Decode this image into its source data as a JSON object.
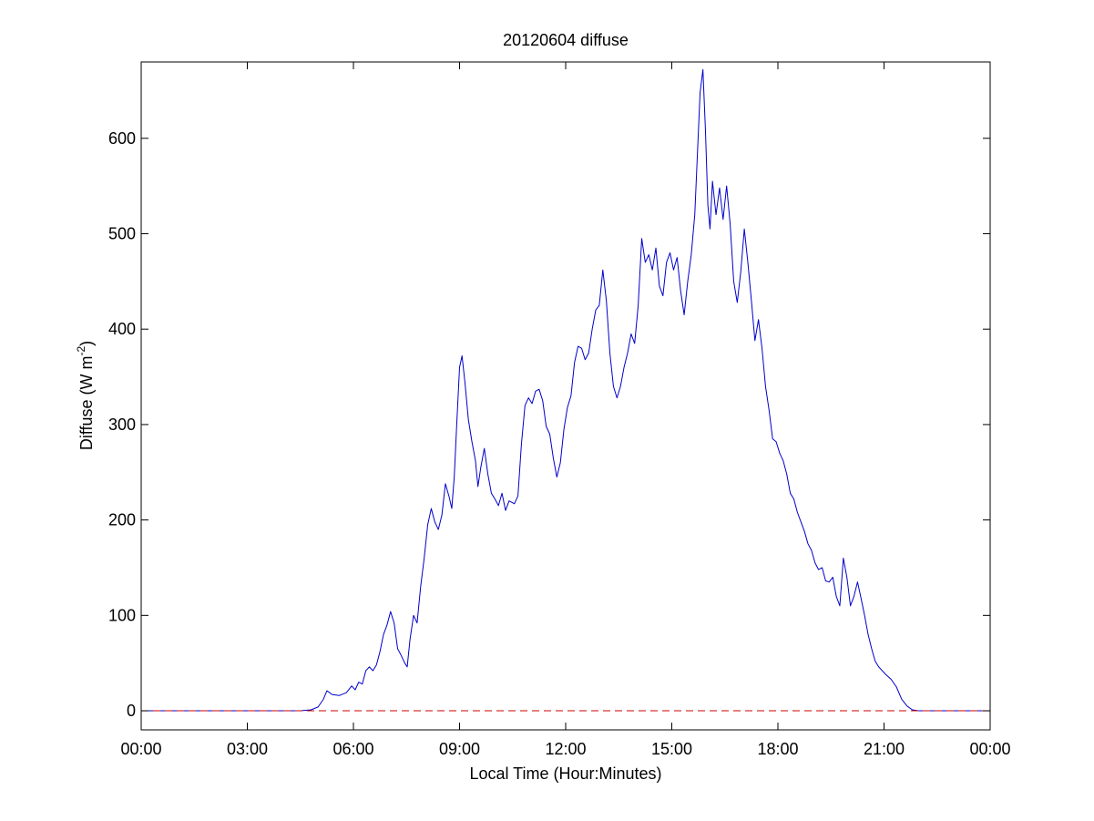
{
  "chart_data": {
    "type": "line",
    "title": "20120604 diffuse",
    "xlabel": "Local Time (Hour:Minutes)",
    "ylabel_main": "Diffuse (W m",
    "ylabel_sup": "-2",
    "ylabel_close": ")",
    "xlim": [
      0,
      24
    ],
    "ylim": [
      -20,
      680
    ],
    "x_ticks": [
      0,
      3,
      6,
      9,
      12,
      15,
      18,
      21,
      24
    ],
    "x_tick_labels": [
      "00:00",
      "03:00",
      "06:00",
      "09:00",
      "12:00",
      "15:00",
      "18:00",
      "21:00",
      "00:00"
    ],
    "y_ticks": [
      0,
      100,
      200,
      300,
      400,
      500,
      600
    ],
    "y_tick_labels": [
      "0",
      "100",
      "200",
      "300",
      "400",
      "500",
      "600"
    ],
    "grid": false,
    "legend": "none",
    "x_units": "hours",
    "series": [
      {
        "color": "#0000cc",
        "style": "solid",
        "points": [
          [
            0.0,
            0
          ],
          [
            4.5,
            0
          ],
          [
            4.8,
            1
          ],
          [
            5.0,
            4
          ],
          [
            5.15,
            12
          ],
          [
            5.25,
            21
          ],
          [
            5.4,
            17
          ],
          [
            5.6,
            16
          ],
          [
            5.8,
            19
          ],
          [
            5.95,
            26
          ],
          [
            6.05,
            22
          ],
          [
            6.15,
            30
          ],
          [
            6.25,
            28
          ],
          [
            6.35,
            42
          ],
          [
            6.45,
            46
          ],
          [
            6.55,
            42
          ],
          [
            6.65,
            48
          ],
          [
            6.75,
            62
          ],
          [
            6.85,
            80
          ],
          [
            6.95,
            90
          ],
          [
            7.05,
            104
          ],
          [
            7.15,
            92
          ],
          [
            7.25,
            65
          ],
          [
            7.35,
            58
          ],
          [
            7.45,
            50
          ],
          [
            7.52,
            46
          ],
          [
            7.6,
            75
          ],
          [
            7.7,
            100
          ],
          [
            7.8,
            92
          ],
          [
            7.9,
            130
          ],
          [
            8.0,
            160
          ],
          [
            8.1,
            195
          ],
          [
            8.2,
            212
          ],
          [
            8.3,
            198
          ],
          [
            8.4,
            190
          ],
          [
            8.5,
            205
          ],
          [
            8.6,
            238
          ],
          [
            8.7,
            225
          ],
          [
            8.78,
            212
          ],
          [
            8.85,
            245
          ],
          [
            8.92,
            300
          ],
          [
            9.0,
            360
          ],
          [
            9.07,
            372
          ],
          [
            9.15,
            345
          ],
          [
            9.25,
            305
          ],
          [
            9.35,
            282
          ],
          [
            9.45,
            262
          ],
          [
            9.52,
            235
          ],
          [
            9.6,
            255
          ],
          [
            9.7,
            275
          ],
          [
            9.8,
            248
          ],
          [
            9.9,
            228
          ],
          [
            10.0,
            222
          ],
          [
            10.1,
            215
          ],
          [
            10.2,
            228
          ],
          [
            10.3,
            210
          ],
          [
            10.4,
            220
          ],
          [
            10.55,
            217
          ],
          [
            10.65,
            225
          ],
          [
            10.75,
            280
          ],
          [
            10.85,
            320
          ],
          [
            10.95,
            328
          ],
          [
            11.05,
            322
          ],
          [
            11.15,
            335
          ],
          [
            11.25,
            337
          ],
          [
            11.35,
            325
          ],
          [
            11.45,
            298
          ],
          [
            11.55,
            290
          ],
          [
            11.65,
            265
          ],
          [
            11.75,
            245
          ],
          [
            11.85,
            260
          ],
          [
            11.95,
            295
          ],
          [
            12.05,
            318
          ],
          [
            12.15,
            330
          ],
          [
            12.25,
            365
          ],
          [
            12.35,
            382
          ],
          [
            12.45,
            380
          ],
          [
            12.55,
            368
          ],
          [
            12.65,
            375
          ],
          [
            12.75,
            400
          ],
          [
            12.85,
            420
          ],
          [
            12.95,
            425
          ],
          [
            13.05,
            462
          ],
          [
            13.15,
            430
          ],
          [
            13.25,
            375
          ],
          [
            13.35,
            340
          ],
          [
            13.45,
            328
          ],
          [
            13.55,
            340
          ],
          [
            13.65,
            360
          ],
          [
            13.75,
            375
          ],
          [
            13.85,
            395
          ],
          [
            13.95,
            385
          ],
          [
            14.05,
            425
          ],
          [
            14.15,
            495
          ],
          [
            14.25,
            470
          ],
          [
            14.35,
            478
          ],
          [
            14.45,
            462
          ],
          [
            14.55,
            485
          ],
          [
            14.65,
            445
          ],
          [
            14.75,
            435
          ],
          [
            14.85,
            470
          ],
          [
            14.95,
            480
          ],
          [
            15.05,
            462
          ],
          [
            15.15,
            475
          ],
          [
            15.25,
            440
          ],
          [
            15.35,
            415
          ],
          [
            15.45,
            450
          ],
          [
            15.55,
            478
          ],
          [
            15.65,
            520
          ],
          [
            15.72,
            580
          ],
          [
            15.8,
            648
          ],
          [
            15.88,
            672
          ],
          [
            15.95,
            610
          ],
          [
            16.02,
            530
          ],
          [
            16.08,
            505
          ],
          [
            16.15,
            555
          ],
          [
            16.25,
            520
          ],
          [
            16.35,
            548
          ],
          [
            16.45,
            515
          ],
          [
            16.55,
            550
          ],
          [
            16.65,
            510
          ],
          [
            16.75,
            450
          ],
          [
            16.85,
            428
          ],
          [
            16.95,
            460
          ],
          [
            17.05,
            505
          ],
          [
            17.15,
            470
          ],
          [
            17.25,
            430
          ],
          [
            17.35,
            388
          ],
          [
            17.45,
            410
          ],
          [
            17.55,
            380
          ],
          [
            17.65,
            340
          ],
          [
            17.75,
            315
          ],
          [
            17.85,
            285
          ],
          [
            17.95,
            282
          ],
          [
            18.05,
            270
          ],
          [
            18.15,
            262
          ],
          [
            18.25,
            248
          ],
          [
            18.35,
            228
          ],
          [
            18.45,
            222
          ],
          [
            18.55,
            208
          ],
          [
            18.65,
            198
          ],
          [
            18.75,
            188
          ],
          [
            18.85,
            175
          ],
          [
            18.95,
            168
          ],
          [
            19.05,
            155
          ],
          [
            19.15,
            148
          ],
          [
            19.25,
            150
          ],
          [
            19.35,
            136
          ],
          [
            19.45,
            135
          ],
          [
            19.55,
            140
          ],
          [
            19.65,
            120
          ],
          [
            19.75,
            110
          ],
          [
            19.85,
            160
          ],
          [
            19.95,
            140
          ],
          [
            20.05,
            110
          ],
          [
            20.15,
            120
          ],
          [
            20.25,
            135
          ],
          [
            20.35,
            118
          ],
          [
            20.45,
            100
          ],
          [
            20.55,
            80
          ],
          [
            20.65,
            65
          ],
          [
            20.75,
            52
          ],
          [
            20.85,
            46
          ],
          [
            20.95,
            42
          ],
          [
            21.05,
            38
          ],
          [
            21.2,
            33
          ],
          [
            21.35,
            25
          ],
          [
            21.5,
            12
          ],
          [
            21.65,
            5
          ],
          [
            21.8,
            1
          ],
          [
            22.0,
            0
          ],
          [
            24.0,
            0
          ]
        ]
      },
      {
        "color": "#cc0000",
        "style": "dashed",
        "points": [
          [
            0,
            0
          ],
          [
            24,
            0
          ]
        ]
      }
    ]
  }
}
